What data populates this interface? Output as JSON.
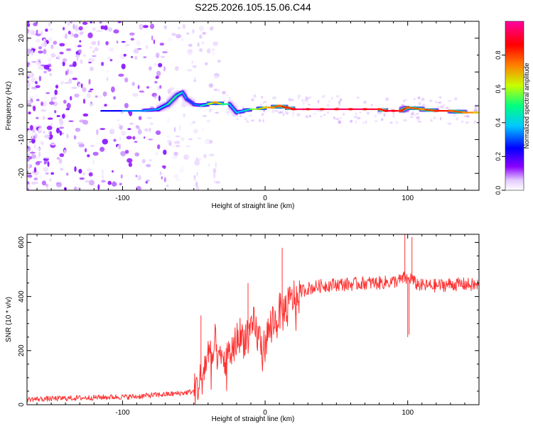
{
  "figure_title": "S225.2026.105.15.06.C44",
  "chart_data": [
    {
      "type": "heatmap",
      "title": "S225.2026.105.15.06.C44",
      "xlabel": "Height of straight line (km)",
      "ylabel": "Frequency (Hz)",
      "xlim": [
        -167,
        150
      ],
      "ylim": [
        -25,
        25
      ],
      "xticks": [
        -100,
        0,
        100
      ],
      "yticks": [
        -20,
        -10,
        0,
        10,
        20
      ],
      "colorbar": {
        "label": "Normalized spectral amplitude",
        "range": [
          0,
          1
        ],
        "ticks": [
          0.0,
          0.2,
          0.4,
          0.6,
          0.8
        ],
        "tick_labels": [
          "0.0",
          "0.2",
          "0.4",
          "0.6",
          "0.8"
        ],
        "colormap": [
          "#ffffff",
          "#e2c8ff",
          "#8a00ff",
          "#0000ff",
          "#00c8ff",
          "#00ff80",
          "#c8ff00",
          "#ff8000",
          "#ff0000",
          "#ff00a0"
        ]
      },
      "ridge": {
        "x": [
          -115,
          -100,
          -85,
          -75,
          -68,
          -62,
          -58,
          -55,
          -50,
          -45,
          -40,
          -35,
          -30,
          -25,
          -20,
          -15,
          -10,
          -5,
          0,
          5,
          10,
          15,
          20,
          30,
          40,
          50,
          60,
          70,
          80,
          85,
          90,
          95,
          100,
          110,
          120,
          130,
          140,
          148
        ],
        "freq": [
          -1.5,
          -1.5,
          -1.5,
          -1,
          0.5,
          3,
          4,
          2,
          0.5,
          0,
          0.5,
          1,
          0.5,
          0.5,
          -2,
          -1.5,
          -1,
          -1,
          -0.5,
          -0.5,
          0,
          -0.5,
          -1,
          -1,
          -1,
          -1,
          -1,
          -1,
          -1,
          -1.5,
          -1.5,
          -1.5,
          -0.5,
          -1,
          -1.5,
          -1.5,
          -2,
          -2
        ],
        "amplitude": [
          0.3,
          0.35,
          0.45,
          0.4,
          0.55,
          0.6,
          0.45,
          0.4,
          0.35,
          0.45,
          0.55,
          0.8,
          0.6,
          0.5,
          0.4,
          0.5,
          0.55,
          0.7,
          0.75,
          0.8,
          0.85,
          0.9,
          0.95,
          0.95,
          0.95,
          0.95,
          0.95,
          0.95,
          0.9,
          0.95,
          0.95,
          0.9,
          0.85,
          0.8,
          0.9,
          0.85,
          0.8,
          0.75
        ]
      }
    },
    {
      "type": "line",
      "xlabel": "Height of straight line (km)",
      "ylabel": "SNR (10 * v/v)",
      "xlim": [
        -167,
        150
      ],
      "ylim": [
        0,
        630
      ],
      "xticks": [
        -100,
        0,
        100
      ],
      "yticks": [
        0,
        200,
        400,
        600
      ],
      "series": [
        {
          "name": "SNR",
          "color": "#ff3333",
          "x": [
            -167,
            -150,
            -130,
            -110,
            -90,
            -80,
            -70,
            -60,
            -55,
            -50,
            -48,
            -45,
            -42,
            -40,
            -37,
            -35,
            -32,
            -30,
            -27,
            -25,
            -22,
            -20,
            -18,
            -15,
            -12,
            -10,
            -8,
            -5,
            -3,
            -2,
            0,
            3,
            5,
            8,
            10,
            12,
            15,
            18,
            20,
            23,
            25,
            30,
            40,
            50,
            60,
            70,
            80,
            90,
            95,
            98,
            100,
            102,
            105,
            110,
            120,
            130,
            140,
            150
          ],
          "y": [
            20,
            22,
            25,
            28,
            30,
            35,
            38,
            42,
            45,
            50,
            60,
            100,
            150,
            190,
            160,
            230,
            150,
            170,
            160,
            190,
            210,
            240,
            260,
            240,
            280,
            250,
            300,
            250,
            240,
            180,
            230,
            280,
            320,
            300,
            350,
            330,
            370,
            380,
            400,
            390,
            420,
            430,
            440,
            445,
            445,
            450,
            450,
            455,
            460,
            470,
            460,
            470,
            450,
            440,
            440,
            445,
            445,
            440
          ]
        }
      ],
      "annotations": [
        {
          "x": -45,
          "y": 330,
          "note": "spike"
        },
        {
          "x": -12,
          "y": 450,
          "note": "spike"
        },
        {
          "x": 12,
          "y": 580,
          "note": "spike"
        },
        {
          "x": 98,
          "y": 640,
          "note": "spike"
        },
        {
          "x": 100,
          "y": 250,
          "note": "dip"
        },
        {
          "x": 101,
          "y": 260,
          "note": "dip"
        },
        {
          "x": 103,
          "y": 620,
          "note": "spike"
        }
      ]
    }
  ]
}
